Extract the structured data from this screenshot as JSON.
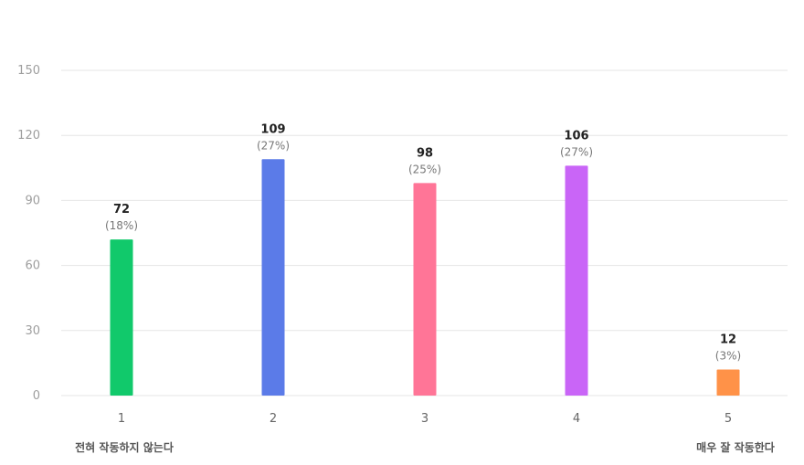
{
  "chart_data": {
    "type": "bar",
    "categories": [
      "1",
      "2",
      "3",
      "4",
      "5"
    ],
    "values": [
      72,
      109,
      98,
      106,
      12
    ],
    "percent_labels": [
      "(18%)",
      "(27%)",
      "(25%)",
      "(27%)",
      "(3%)"
    ],
    "colors": [
      "#11c96b",
      "#5b7be8",
      "#ff7597",
      "#c965f7",
      "#ff9248"
    ],
    "yticks": [
      "0",
      "30",
      "60",
      "90",
      "120",
      "150"
    ],
    "ylim": [
      0,
      150
    ],
    "grid": true,
    "title": "",
    "xlabel": "",
    "ylabel": ""
  },
  "scale_labels": {
    "low": "전혀 작동하지 않는다",
    "high": "매우 잘 작동한다"
  }
}
